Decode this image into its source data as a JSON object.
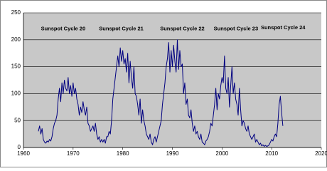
{
  "chart_data": {
    "type": "line",
    "annotations": [
      {
        "text": "Sunspot Cycle 20",
        "x": 1968,
        "y": 220
      },
      {
        "text": "Sunspot Cycle 21",
        "x": 1979.7,
        "y": 220
      },
      {
        "text": "Sunspot Cycle 22",
        "x": 1992,
        "y": 220
      },
      {
        "text": "Sunspot Cycle 23",
        "x": 2002.8,
        "y": 220
      },
      {
        "text": "Sunspot Cycle 24",
        "x": 2012.3,
        "y": 222
      }
    ],
    "x": [
      1963,
      1963.25,
      1963.5,
      1963.75,
      1964,
      1964.25,
      1964.5,
      1964.75,
      1965,
      1965.25,
      1965.5,
      1965.75,
      1966,
      1966.25,
      1966.5,
      1966.75,
      1967,
      1967.25,
      1967.5,
      1967.75,
      1968,
      1968.25,
      1968.5,
      1968.75,
      1969,
      1969.25,
      1969.5,
      1969.75,
      1970,
      1970.25,
      1970.5,
      1970.75,
      1971,
      1971.25,
      1971.5,
      1971.75,
      1972,
      1972.25,
      1972.5,
      1972.75,
      1973,
      1973.25,
      1973.5,
      1973.75,
      1974,
      1974.25,
      1974.5,
      1974.75,
      1975,
      1975.25,
      1975.5,
      1975.75,
      1976,
      1976.25,
      1976.5,
      1976.75,
      1977,
      1977.25,
      1977.5,
      1977.75,
      1978,
      1978.25,
      1978.5,
      1978.75,
      1979,
      1979.25,
      1979.5,
      1979.75,
      1980,
      1980.25,
      1980.5,
      1980.75,
      1981,
      1981.25,
      1981.5,
      1981.75,
      1982,
      1982.25,
      1982.5,
      1982.75,
      1983,
      1983.25,
      1983.5,
      1983.75,
      1984,
      1984.25,
      1984.5,
      1984.75,
      1985,
      1985.25,
      1985.5,
      1985.75,
      1986,
      1986.25,
      1986.5,
      1986.75,
      1987,
      1987.25,
      1987.5,
      1987.75,
      1988,
      1988.25,
      1988.5,
      1988.75,
      1989,
      1989.25,
      1989.5,
      1989.75,
      1990,
      1990.25,
      1990.5,
      1990.75,
      1991,
      1991.25,
      1991.5,
      1991.75,
      1992,
      1992.25,
      1992.5,
      1992.75,
      1993,
      1993.25,
      1993.5,
      1993.75,
      1994,
      1994.25,
      1994.5,
      1994.75,
      1995,
      1995.25,
      1995.5,
      1995.75,
      1996,
      1996.25,
      1996.5,
      1996.75,
      1997,
      1997.25,
      1997.5,
      1997.75,
      1998,
      1998.25,
      1998.5,
      1998.75,
      1999,
      1999.25,
      1999.5,
      1999.75,
      2000,
      2000.25,
      2000.5,
      2000.75,
      2001,
      2001.25,
      2001.5,
      2001.75,
      2002,
      2002.25,
      2002.5,
      2002.75,
      2003,
      2003.25,
      2003.5,
      2003.75,
      2004,
      2004.25,
      2004.5,
      2004.75,
      2005,
      2005.25,
      2005.5,
      2005.75,
      2006,
      2006.25,
      2006.5,
      2006.75,
      2007,
      2007.25,
      2007.5,
      2007.75,
      2008,
      2008.25,
      2008.5,
      2008.75,
      2009,
      2009.25,
      2009.5,
      2009.75,
      2010,
      2010.25,
      2010.5,
      2010.75,
      2011,
      2011.25,
      2011.5,
      2011.75,
      2012,
      2012.25
    ],
    "series": [
      {
        "color": "#000080",
        "values": [
          30,
          40,
          25,
          35,
          15,
          10,
          8,
          12,
          10,
          15,
          12,
          20,
          35,
          45,
          50,
          60,
          90,
          110,
          85,
          120,
          100,
          125,
          110,
          105,
          130,
          100,
          115,
          95,
          120,
          100,
          110,
          90,
          80,
          60,
          75,
          65,
          85,
          70,
          60,
          75,
          45,
          40,
          30,
          35,
          40,
          30,
          45,
          25,
          15,
          20,
          10,
          15,
          10,
          15,
          8,
          20,
          20,
          30,
          25,
          50,
          90,
          110,
          130,
          150,
          170,
          150,
          185,
          160,
          180,
          155,
          165,
          140,
          175,
          120,
          160,
          130,
          110,
          150,
          100,
          95,
          80,
          60,
          90,
          45,
          70,
          50,
          40,
          25,
          20,
          15,
          25,
          10,
          5,
          15,
          20,
          10,
          20,
          30,
          40,
          50,
          80,
          100,
          120,
          150,
          165,
          195,
          140,
          180,
          150,
          190,
          160,
          140,
          200,
          145,
          180,
          150,
          155,
          100,
          120,
          80,
          90,
          60,
          55,
          70,
          45,
          30,
          40,
          25,
          30,
          20,
          15,
          25,
          10,
          8,
          5,
          12,
          15,
          20,
          30,
          45,
          40,
          60,
          80,
          110,
          70,
          100,
          90,
          115,
          130,
          120,
          170,
          110,
          100,
          130,
          75,
          115,
          150,
          100,
          120,
          90,
          80,
          60,
          110,
          70,
          40,
          50,
          45,
          35,
          30,
          40,
          25,
          20,
          15,
          20,
          25,
          10,
          15,
          10,
          5,
          8,
          3,
          5,
          2,
          4,
          2,
          3,
          5,
          10,
          15,
          12,
          20,
          25,
          20,
          45,
          80,
          95,
          65,
          40
        ]
      }
    ],
    "xlim": [
      1960,
      2020
    ],
    "xticks": [
      1960,
      1970,
      1980,
      1990,
      2000,
      2010,
      2020
    ],
    "ylim": [
      0,
      250
    ],
    "yticks": [
      0,
      50,
      100,
      150,
      200,
      250
    ],
    "grid": true
  }
}
